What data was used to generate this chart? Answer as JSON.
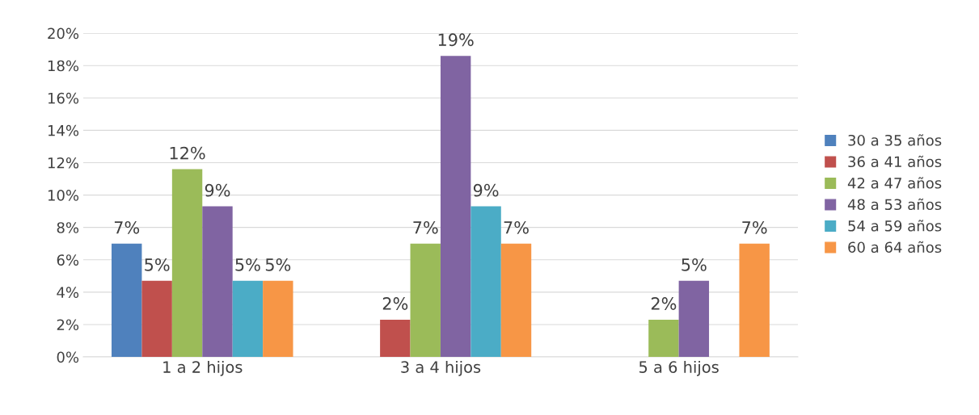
{
  "chart_data": {
    "type": "bar",
    "categories": [
      "1 a 2 hijos",
      "3 a 4 hijos",
      "5 a 6 hijos"
    ],
    "series": [
      {
        "name": "30 a 35 años",
        "color": "#4f81bd",
        "values": [
          7.0,
          null,
          null
        ],
        "value_labels": [
          "7%",
          null,
          null
        ]
      },
      {
        "name": "36 a 41 años",
        "color": "#c0504d",
        "values": [
          4.7,
          2.3,
          null
        ],
        "value_labels": [
          "5%",
          "2%",
          null
        ]
      },
      {
        "name": "42 a 47 años",
        "color": "#9bbb59",
        "values": [
          11.6,
          7.0,
          2.3
        ],
        "value_labels": [
          "12%",
          "7%",
          "2%"
        ]
      },
      {
        "name": "48 a 53 años",
        "color": "#8064a2",
        "values": [
          9.3,
          18.6,
          4.7
        ],
        "value_labels": [
          "9%",
          "19%",
          "5%"
        ]
      },
      {
        "name": "54 a 59 años",
        "color": "#4bacc6",
        "values": [
          4.7,
          9.3,
          null
        ],
        "value_labels": [
          "5%",
          "9%",
          null
        ]
      },
      {
        "name": "60 a 64 años",
        "color": "#f79646",
        "values": [
          4.7,
          7.0,
          7.0
        ],
        "value_labels": [
          "5%",
          "7%",
          "7%"
        ]
      }
    ],
    "ylim": [
      0,
      20
    ],
    "yticks": [
      {
        "value": 0,
        "label": "0%"
      },
      {
        "value": 2,
        "label": "2%"
      },
      {
        "value": 4,
        "label": "4%"
      },
      {
        "value": 6,
        "label": "6%"
      },
      {
        "value": 8,
        "label": "8%"
      },
      {
        "value": 10,
        "label": "10%"
      },
      {
        "value": 12,
        "label": "12%"
      },
      {
        "value": 14,
        "label": "14%"
      },
      {
        "value": 16,
        "label": "16%"
      },
      {
        "value": 18,
        "label": "18%"
      },
      {
        "value": 20,
        "label": "20%"
      }
    ],
    "grid": "y",
    "legend": "right"
  }
}
